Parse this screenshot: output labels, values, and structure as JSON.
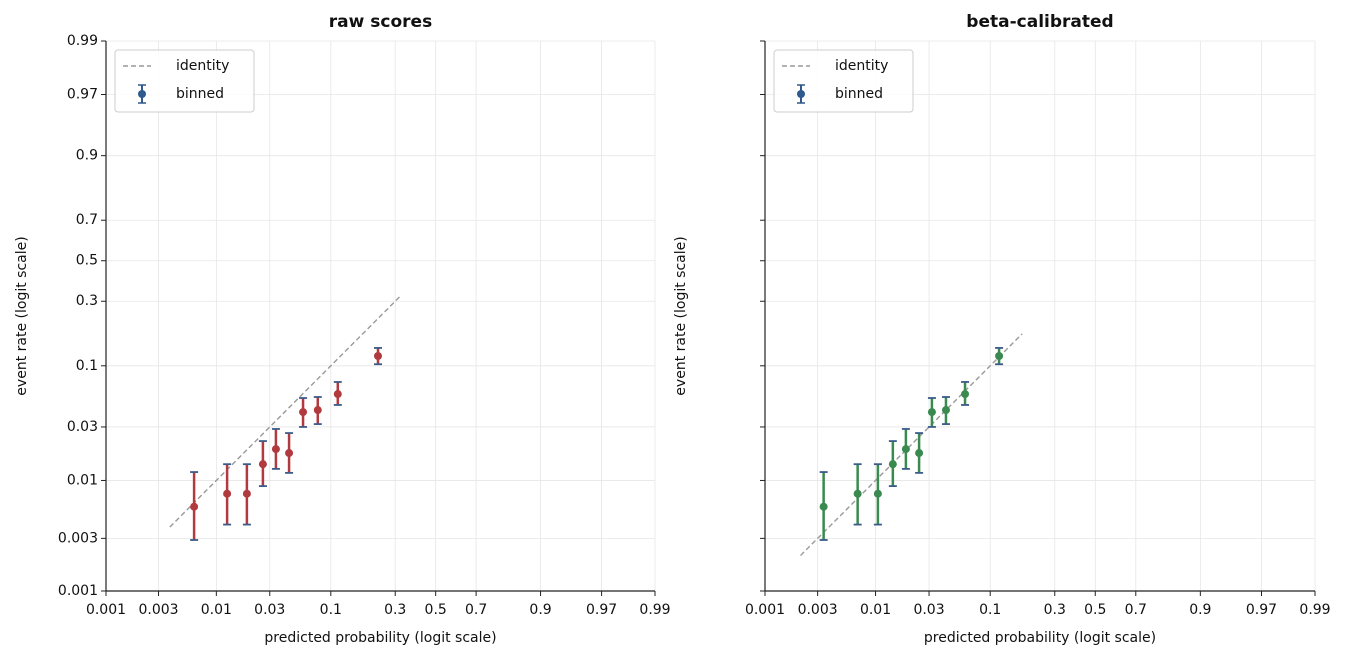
{
  "chart_data": [
    {
      "type": "scatter",
      "title": "raw scores",
      "xlabel": "predicted probability (logit scale)",
      "ylabel": "event rate (logit scale)",
      "xscale": "logit",
      "yscale": "logit",
      "xlim": [
        0.001,
        0.99
      ],
      "ylim": [
        0.001,
        0.99
      ],
      "xticks": [
        0.001,
        0.003,
        0.01,
        0.03,
        0.1,
        0.3,
        0.5,
        0.7,
        0.9,
        0.97,
        0.99
      ],
      "yticks": [
        0.001,
        0.003,
        0.01,
        0.03,
        0.1,
        0.3,
        0.5,
        0.7,
        0.9,
        0.97,
        0.99
      ],
      "show_ytick_labels": true,
      "grid": true,
      "legend": "upper left",
      "series": [
        {
          "name": "identity",
          "kind": "line",
          "color": "#999999",
          "x": [
            0.0038,
            0.326
          ],
          "y": [
            0.0038,
            0.326
          ]
        },
        {
          "name": "binned",
          "kind": "errorbar",
          "color": "#b03a3e",
          "cap_color": "#3b5b8a",
          "legend_color": "#30598c",
          "x": [
            0.0063,
            0.0125,
            0.0188,
            0.0261,
            0.034,
            0.0443,
            0.0585,
            0.078,
            0.114,
            0.23
          ],
          "y": [
            0.0058,
            0.0076,
            0.0076,
            0.014,
            0.0191,
            0.0176,
            0.0405,
            0.0422,
            0.058,
            0.12
          ],
          "lower": [
            0.0029,
            0.004,
            0.004,
            0.0089,
            0.0127,
            0.0117,
            0.03,
            0.0318,
            0.0467,
            0.103
          ],
          "upper": [
            0.0119,
            0.014,
            0.014,
            0.0225,
            0.0288,
            0.0265,
            0.0536,
            0.0547,
            0.0734,
            0.139
          ]
        }
      ]
    },
    {
      "type": "scatter",
      "title": "beta-calibrated",
      "xlabel": "predicted probability (logit scale)",
      "ylabel": "event rate (logit scale)",
      "xscale": "logit",
      "yscale": "logit",
      "xlim": [
        0.001,
        0.99
      ],
      "ylim": [
        0.001,
        0.99
      ],
      "xticks": [
        0.001,
        0.003,
        0.01,
        0.03,
        0.1,
        0.3,
        0.5,
        0.7,
        0.9,
        0.97,
        0.99
      ],
      "yticks": [
        0.001,
        0.003,
        0.01,
        0.03,
        0.1,
        0.3,
        0.5,
        0.7,
        0.9,
        0.97,
        0.99
      ],
      "show_ytick_labels": false,
      "grid": true,
      "legend": "upper left",
      "series": [
        {
          "name": "identity",
          "kind": "line",
          "color": "#999999",
          "x": [
            0.0021,
            0.178
          ],
          "y": [
            0.0021,
            0.178
          ]
        },
        {
          "name": "binned",
          "kind": "errorbar",
          "color": "#3a8a4f",
          "cap_color": "#3b5b8a",
          "legend_color": "#30598c",
          "x": [
            0.0034,
            0.0069,
            0.0105,
            0.0143,
            0.0187,
            0.0245,
            0.0318,
            0.0422,
            0.0616,
            0.118
          ],
          "y": [
            0.0058,
            0.0076,
            0.0076,
            0.014,
            0.0191,
            0.0176,
            0.0405,
            0.0422,
            0.058,
            0.12
          ],
          "lower": [
            0.0029,
            0.004,
            0.004,
            0.0089,
            0.0127,
            0.0117,
            0.03,
            0.0318,
            0.0467,
            0.103
          ],
          "upper": [
            0.0119,
            0.014,
            0.014,
            0.0225,
            0.0288,
            0.0265,
            0.0536,
            0.0547,
            0.0734,
            0.139
          ]
        }
      ]
    }
  ]
}
